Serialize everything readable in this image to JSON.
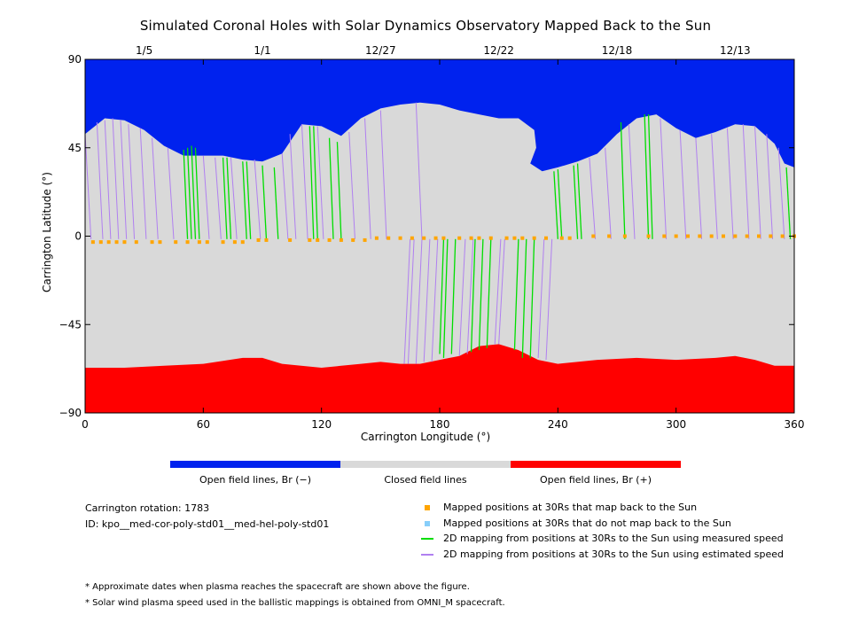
{
  "chart_data": {
    "type": "map",
    "title": "Simulated Coronal Holes with Solar Dynamics Observatory Mapped Back to the Sun",
    "xlabel": "Carrington Longitude (°)",
    "ylabel": "Carrington Latitude (°)",
    "xlim": [
      0,
      360
    ],
    "ylim": [
      -90,
      90
    ],
    "x_ticks": [
      "0",
      "60",
      "120",
      "180",
      "240",
      "300",
      "360"
    ],
    "y_ticks": [
      "90",
      "45",
      "0",
      "−45",
      "−90"
    ],
    "top_axis_dates": [
      {
        "longitude": 30,
        "label": "1/5"
      },
      {
        "longitude": 90,
        "label": "1/1"
      },
      {
        "longitude": 150,
        "label": "12/27"
      },
      {
        "longitude": 210,
        "label": "12/22"
      },
      {
        "longitude": 270,
        "label": "12/18"
      },
      {
        "longitude": 330,
        "label": "12/13"
      }
    ],
    "colors": {
      "open_negative": "#0022ee",
      "closed": "#d9d9d9",
      "open_positive": "#ff0000",
      "mapped_point": "#ffa500",
      "unmapped_point": "#87cefa",
      "measured_speed": "#00dd00",
      "estimated_speed": "#b080f0"
    },
    "north_hole_boundary": [
      [
        0,
        52
      ],
      [
        10,
        60
      ],
      [
        20,
        59
      ],
      [
        30,
        54
      ],
      [
        40,
        46
      ],
      [
        50,
        41
      ],
      [
        60,
        41
      ],
      [
        70,
        41
      ],
      [
        80,
        39
      ],
      [
        90,
        38
      ],
      [
        100,
        42
      ],
      [
        110,
        57
      ],
      [
        120,
        56
      ],
      [
        130,
        51
      ],
      [
        140,
        60
      ],
      [
        150,
        65
      ],
      [
        160,
        67
      ],
      [
        170,
        68
      ],
      [
        180,
        67
      ],
      [
        190,
        64
      ],
      [
        200,
        62
      ],
      [
        210,
        60
      ],
      [
        220,
        60
      ],
      [
        228,
        54
      ],
      [
        229,
        45
      ],
      [
        226,
        37
      ],
      [
        232,
        33
      ],
      [
        240,
        35
      ],
      [
        250,
        38
      ],
      [
        260,
        42
      ],
      [
        270,
        52
      ],
      [
        280,
        60
      ],
      [
        290,
        62
      ],
      [
        300,
        55
      ],
      [
        310,
        50
      ],
      [
        320,
        53
      ],
      [
        330,
        57
      ],
      [
        340,
        56
      ],
      [
        350,
        47
      ],
      [
        355,
        37
      ],
      [
        360,
        35
      ]
    ],
    "south_hole_boundary": [
      [
        0,
        -67
      ],
      [
        20,
        -67
      ],
      [
        40,
        -66
      ],
      [
        60,
        -65
      ],
      [
        80,
        -62
      ],
      [
        90,
        -62
      ],
      [
        100,
        -65
      ],
      [
        120,
        -67
      ],
      [
        140,
        -65
      ],
      [
        150,
        -64
      ],
      [
        160,
        -65
      ],
      [
        170,
        -65
      ],
      [
        180,
        -63
      ],
      [
        190,
        -61
      ],
      [
        200,
        -56
      ],
      [
        210,
        -55
      ],
      [
        220,
        -58
      ],
      [
        230,
        -63
      ],
      [
        240,
        -65
      ],
      [
        260,
        -63
      ],
      [
        280,
        -62
      ],
      [
        300,
        -63
      ],
      [
        320,
        -62
      ],
      [
        330,
        -61
      ],
      [
        340,
        -63
      ],
      [
        350,
        -66
      ],
      [
        360,
        -66
      ]
    ],
    "mapped_points": {
      "longitudes": [
        4,
        8,
        12,
        16,
        20,
        26,
        34,
        38,
        46,
        52,
        58,
        62,
        70,
        76,
        80,
        88,
        92,
        104,
        114,
        118,
        124,
        130,
        136,
        142,
        148,
        154,
        160,
        166,
        172,
        178,
        182,
        190,
        196,
        200,
        206,
        214,
        218,
        222,
        228,
        234,
        242,
        246,
        258,
        266,
        274,
        286,
        294,
        300,
        306,
        312,
        318,
        324,
        330,
        336,
        342,
        348,
        354,
        360
      ],
      "latitudes": [
        -3,
        -3,
        -3,
        -3,
        -3,
        -3,
        -3,
        -3,
        -3,
        -3,
        -3,
        -3,
        -3,
        -3,
        -3,
        -2,
        -2,
        -2,
        -2,
        -2,
        -2,
        -2,
        -2,
        -2,
        -1,
        -1,
        -1,
        -1,
        -1,
        -1,
        -1,
        -1,
        -1,
        -1,
        -1,
        -1,
        -1,
        -1,
        -1,
        -1,
        -1,
        -1,
        0,
        0,
        0,
        0,
        0,
        0,
        0,
        0,
        0,
        0,
        0,
        0,
        0,
        0,
        0,
        0
      ]
    },
    "measured_mappings": [
      [
        50,
        44
      ],
      [
        52,
        45
      ],
      [
        54,
        46
      ],
      [
        56,
        45
      ],
      [
        70,
        40
      ],
      [
        72,
        40
      ],
      [
        80,
        38
      ],
      [
        82,
        38
      ],
      [
        90,
        36
      ],
      [
        96,
        35
      ],
      [
        114,
        56
      ],
      [
        116,
        56
      ],
      [
        124,
        50
      ],
      [
        128,
        48
      ],
      [
        180,
        -60
      ],
      [
        182,
        -62
      ],
      [
        186,
        -60
      ],
      [
        196,
        -59
      ],
      [
        200,
        -58
      ],
      [
        204,
        -57
      ],
      [
        218,
        -58
      ],
      [
        222,
        -62
      ],
      [
        226,
        -62
      ],
      [
        238,
        33
      ],
      [
        240,
        34
      ],
      [
        248,
        36
      ],
      [
        250,
        37
      ],
      [
        272,
        58
      ],
      [
        284,
        62
      ],
      [
        286,
        62
      ],
      [
        356,
        35
      ]
    ],
    "estimated_mappings_north": [
      [
        0,
        52
      ],
      [
        6,
        58
      ],
      [
        10,
        59
      ],
      [
        14,
        60
      ],
      [
        18,
        59
      ],
      [
        22,
        57
      ],
      [
        28,
        55
      ],
      [
        34,
        50
      ],
      [
        42,
        45
      ],
      [
        60,
        41
      ],
      [
        66,
        40
      ],
      [
        74,
        40
      ],
      [
        86,
        39
      ],
      [
        100,
        42
      ],
      [
        104,
        52
      ],
      [
        110,
        57
      ],
      [
        118,
        56
      ],
      [
        134,
        53
      ],
      [
        142,
        60
      ],
      [
        150,
        64
      ],
      [
        168,
        68
      ],
      [
        256,
        40
      ],
      [
        264,
        45
      ],
      [
        276,
        57
      ],
      [
        292,
        60
      ],
      [
        302,
        54
      ],
      [
        310,
        50
      ],
      [
        318,
        52
      ],
      [
        326,
        55
      ],
      [
        334,
        57
      ],
      [
        340,
        56
      ],
      [
        346,
        52
      ],
      [
        352,
        45
      ]
    ],
    "estimated_mappings_south": [
      [
        162,
        -65
      ],
      [
        164,
        -65
      ],
      [
        168,
        -65
      ],
      [
        172,
        -64
      ],
      [
        176,
        -64
      ],
      [
        190,
        -61
      ],
      [
        194,
        -60
      ],
      [
        208,
        -55
      ],
      [
        210,
        -55
      ],
      [
        230,
        -62
      ],
      [
        234,
        -63
      ]
    ],
    "colorbar": [
      {
        "label": "Open field lines, Br (−)",
        "color": "#0022ee"
      },
      {
        "label": "Closed field lines",
        "color": "#d9d9d9"
      },
      {
        "label": "Open field lines, Br (+)",
        "color": "#ff0000"
      }
    ],
    "info": {
      "rotation": "Carrington rotation: 1783",
      "id": "ID: kpo__med-cor-poly-std01__med-hel-poly-std01"
    },
    "legend": [
      {
        "label": "Mapped positions at 30Rs that map back to the Sun",
        "kind": "square",
        "color": "#ffa500"
      },
      {
        "label": "Mapped positions at 30Rs that do not map back to the Sun",
        "kind": "square",
        "color": "#87cefa"
      },
      {
        "label": "2D mapping from positions at 30Rs to the Sun using measured speed",
        "kind": "line",
        "color": "#00dd00"
      },
      {
        "label": "2D mapping from positions at 30Rs to the Sun using estimated speed",
        "kind": "line",
        "color": "#b080f0"
      }
    ],
    "notes": [
      "* Approximate dates when plasma reaches the spacecraft are shown above the figure.",
      "* Solar wind plasma speed used in the ballistic mappings is obtained from OMNI_M spacecraft."
    ]
  }
}
